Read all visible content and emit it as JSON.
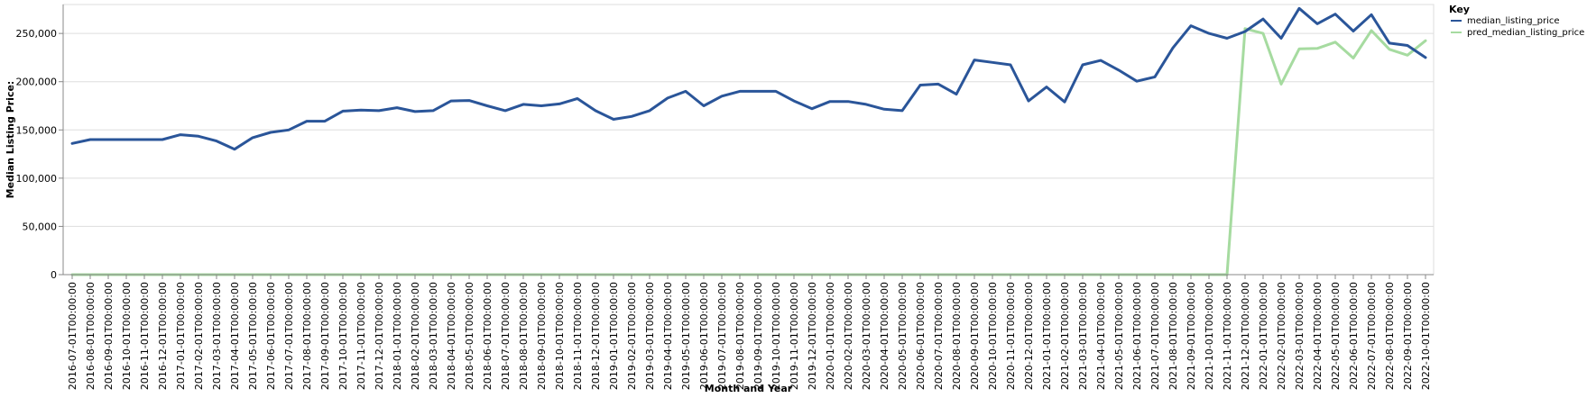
{
  "chart_data": {
    "type": "line",
    "xlabel": "Month and Year",
    "ylabel": "Median Listing Price:",
    "ylim": [
      0,
      280000
    ],
    "yticks": [
      0,
      50000,
      100000,
      150000,
      200000,
      250000
    ],
    "ytick_labels": [
      "0",
      "50,000",
      "100,000",
      "150,000",
      "200,000",
      "250,000"
    ],
    "grid": "horizontal",
    "legend": {
      "title": "Key",
      "placement": "top-right"
    },
    "colors": {
      "median_listing_price": "#2a5599",
      "pred_median_listing_price": "#a6dba0"
    },
    "x": [
      "2016-07-01T00:00:00",
      "2016-08-01T00:00:00",
      "2016-09-01T00:00:00",
      "2016-10-01T00:00:00",
      "2016-11-01T00:00:00",
      "2016-12-01T00:00:00",
      "2017-01-01T00:00:00",
      "2017-02-01T00:00:00",
      "2017-03-01T00:00:00",
      "2017-04-01T00:00:00",
      "2017-05-01T00:00:00",
      "2017-06-01T00:00:00",
      "2017-07-01T00:00:00",
      "2017-08-01T00:00:00",
      "2017-09-01T00:00:00",
      "2017-10-01T00:00:00",
      "2017-11-01T00:00:00",
      "2017-12-01T00:00:00",
      "2018-01-01T00:00:00",
      "2018-02-01T00:00:00",
      "2018-03-01T00:00:00",
      "2018-04-01T00:00:00",
      "2018-05-01T00:00:00",
      "2018-06-01T00:00:00",
      "2018-07-01T00:00:00",
      "2018-08-01T00:00:00",
      "2018-09-01T00:00:00",
      "2018-10-01T00:00:00",
      "2018-11-01T00:00:00",
      "2018-12-01T00:00:00",
      "2019-01-01T00:00:00",
      "2019-02-01T00:00:00",
      "2019-03-01T00:00:00",
      "2019-04-01T00:00:00",
      "2019-05-01T00:00:00",
      "2019-06-01T00:00:00",
      "2019-07-01T00:00:00",
      "2019-08-01T00:00:00",
      "2019-09-01T00:00:00",
      "2019-10-01T00:00:00",
      "2019-11-01T00:00:00",
      "2019-12-01T00:00:00",
      "2020-01-01T00:00:00",
      "2020-02-01T00:00:00",
      "2020-03-01T00:00:00",
      "2020-04-01T00:00:00",
      "2020-05-01T00:00:00",
      "2020-06-01T00:00:00",
      "2020-07-01T00:00:00",
      "2020-08-01T00:00:00",
      "2020-09-01T00:00:00",
      "2020-10-01T00:00:00",
      "2020-11-01T00:00:00",
      "2020-12-01T00:00:00",
      "2021-01-01T00:00:00",
      "2021-02-01T00:00:00",
      "2021-03-01T00:00:00",
      "2021-04-01T00:00:00",
      "2021-05-01T00:00:00",
      "2021-06-01T00:00:00",
      "2021-07-01T00:00:00",
      "2021-08-01T00:00:00",
      "2021-09-01T00:00:00",
      "2021-10-01T00:00:00",
      "2021-11-01T00:00:00",
      "2021-12-01T00:00:00",
      "2022-01-01T00:00:00",
      "2022-02-01T00:00:00",
      "2022-03-01T00:00:00",
      "2022-04-01T00:00:00",
      "2022-05-01T00:00:00",
      "2022-06-01T00:00:00",
      "2022-07-01T00:00:00",
      "2022-08-01T00:00:00",
      "2022-09-01T00:00:00",
      "2022-10-01T00:00:00"
    ],
    "series": [
      {
        "name": "median_listing_price",
        "values": [
          136000,
          140000,
          140000,
          140000,
          140000,
          140000,
          145000,
          143500,
          138500,
          130000,
          142000,
          147500,
          150000,
          159000,
          159000,
          169500,
          170500,
          170000,
          173000,
          169000,
          170000,
          180000,
          180500,
          175000,
          170000,
          176500,
          175000,
          177000,
          182500,
          170000,
          161000,
          164000,
          170000,
          183000,
          190000,
          175000,
          185000,
          190000,
          190000,
          190000,
          180000,
          172000,
          179500,
          179500,
          176500,
          171500,
          170000,
          196500,
          197500,
          187000,
          222500,
          220000,
          217500,
          180000,
          194500,
          179000,
          217500,
          222000,
          212000,
          200500,
          205000,
          235000,
          258000,
          250000,
          245000,
          252000,
          265000,
          245000,
          276000,
          260000,
          270000,
          252500,
          269500,
          240000,
          237500,
          225000
        ]
      },
      {
        "name": "pred_median_listing_price",
        "values": [
          0,
          0,
          0,
          0,
          0,
          0,
          0,
          0,
          0,
          0,
          0,
          0,
          0,
          0,
          0,
          0,
          0,
          0,
          0,
          0,
          0,
          0,
          0,
          0,
          0,
          0,
          0,
          0,
          0,
          0,
          0,
          0,
          0,
          0,
          0,
          0,
          0,
          0,
          0,
          0,
          0,
          0,
          0,
          0,
          0,
          0,
          0,
          0,
          0,
          0,
          0,
          0,
          0,
          0,
          0,
          0,
          0,
          0,
          0,
          0,
          0,
          0,
          0,
          0,
          0,
          255000,
          250000,
          197500,
          234000,
          234500,
          241000,
          224500,
          253000,
          233500,
          227500,
          242500
        ]
      }
    ]
  }
}
